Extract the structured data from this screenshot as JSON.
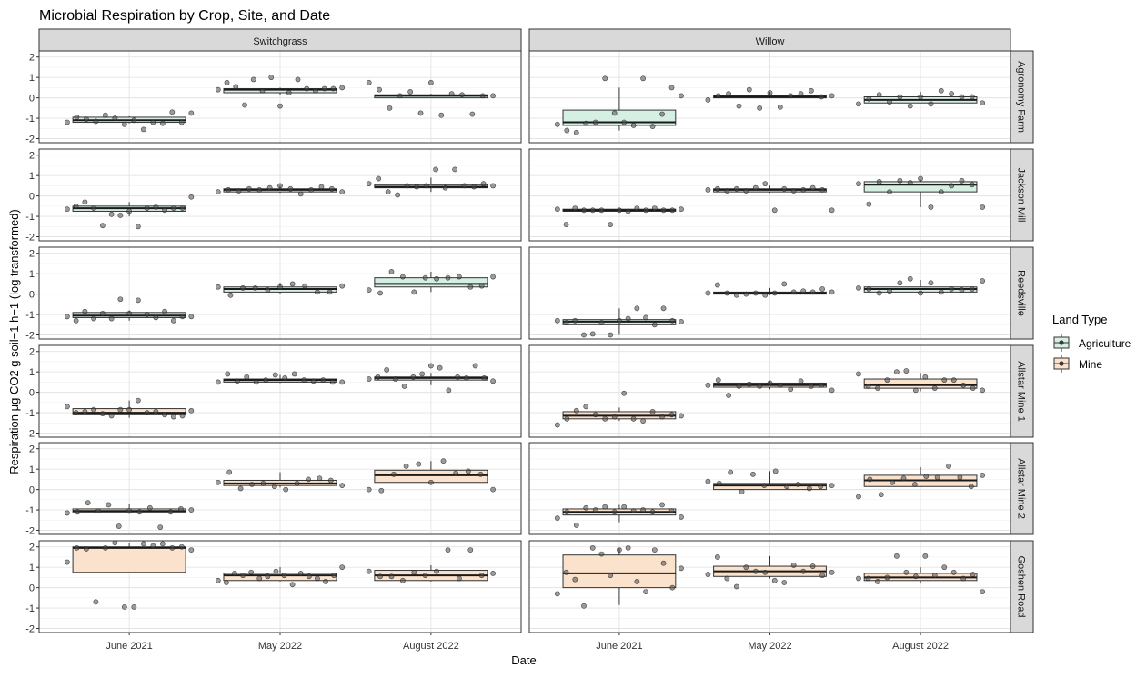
{
  "chart_data": {
    "type": "boxplot",
    "title": "Microbial Respiration by Crop, Site, and Date",
    "xlabel": "Date",
    "ylabel": "Respiration μg CO2 g soil−1 h−1 (log transformed)",
    "ylim": [
      -2.2,
      2.3
    ],
    "yticks": [
      "-2",
      "-1",
      "0",
      "1",
      "2"
    ],
    "grid": true,
    "legend": {
      "title": "Land Type",
      "position": "right",
      "entries": [
        {
          "name": "Agriculture",
          "color": "#d6efe3"
        },
        {
          "name": "Mine",
          "color": "#fbe2cc"
        }
      ]
    },
    "columns": [
      "Switchgrass",
      "Willow"
    ],
    "rows": [
      "Agronomy Farm",
      "Jackson Mill",
      "Reedsville",
      "Allstar Mine 1",
      "Allstar Mine 2",
      "Goshen Road"
    ],
    "row_land_type": [
      "Agriculture",
      "Agriculture",
      "Agriculture",
      "Mine",
      "Mine",
      "Mine"
    ],
    "categories": [
      "June 2021",
      "May 2022",
      "August 2022"
    ],
    "panels": [
      {
        "crop": "Switchgrass",
        "site": "Agronomy Farm",
        "boxes": [
          {
            "date": "June 2021",
            "min": -1.25,
            "q1": -1.2,
            "median": -1.1,
            "q3": -0.95,
            "max": -0.9,
            "points": [
              -1.2,
              -0.95,
              -1.05,
              -1.15,
              -0.85,
              -1.0,
              -1.3,
              -1.1,
              -1.55,
              -1.2,
              -1.25,
              -0.7,
              -1.2,
              -0.75
            ]
          },
          {
            "date": "May 2022",
            "min": 0.15,
            "q1": 0.25,
            "median": 0.4,
            "q3": 0.45,
            "max": 0.5,
            "points": [
              0.4,
              0.75,
              0.55,
              -0.35,
              0.9,
              0.35,
              1.0,
              -0.4,
              0.25,
              0.9,
              0.45,
              0.35,
              0.45,
              0.45,
              0.5
            ]
          },
          {
            "date": "August 2022",
            "min": 0.0,
            "q1": 0.0,
            "median": 0.1,
            "q3": 0.15,
            "max": 0.2,
            "points": [
              0.75,
              0.4,
              -0.5,
              0.1,
              0.3,
              -0.75,
              0.75,
              -0.85,
              0.2,
              0.15,
              -0.8,
              0.1,
              0.1
            ]
          }
        ]
      },
      {
        "crop": "Willow",
        "site": "Agronomy Farm",
        "boxes": [
          {
            "date": "June 2021",
            "min": -1.6,
            "q1": -1.35,
            "median": -1.2,
            "q3": -0.6,
            "max": 0.5,
            "points": [
              -1.3,
              -1.6,
              -1.7,
              -1.25,
              -1.2,
              0.95,
              -0.75,
              -1.2,
              -1.35,
              0.95,
              -1.4,
              -0.8,
              0.5,
              0.1
            ]
          },
          {
            "date": "May 2022",
            "min": 0.0,
            "q1": 0.0,
            "median": 0.05,
            "q3": 0.1,
            "max": 0.3,
            "points": [
              -0.1,
              0.1,
              0.2,
              -0.4,
              0.4,
              -0.5,
              0.25,
              -0.45,
              0.1,
              0.2,
              0.35,
              0.05,
              0.1
            ]
          },
          {
            "date": "August 2022",
            "min": -0.25,
            "q1": -0.25,
            "median": -0.1,
            "q3": 0.05,
            "max": 0.3,
            "points": [
              -0.3,
              -0.05,
              0.15,
              -0.2,
              0.05,
              -0.4,
              0.05,
              -0.3,
              0.35,
              0.2,
              0.05,
              0.05,
              -0.25
            ]
          }
        ]
      },
      {
        "crop": "Switchgrass",
        "site": "Jackson Mill",
        "boxes": [
          {
            "date": "June 2021",
            "min": -1.0,
            "q1": -0.75,
            "median": -0.6,
            "q3": -0.5,
            "max": -0.3,
            "points": [
              -0.65,
              -0.5,
              -0.3,
              -0.6,
              -1.45,
              -0.9,
              -0.95,
              -0.75,
              -1.5,
              -0.6,
              -0.55,
              -0.7,
              -0.6,
              -0.6,
              -0.05
            ]
          },
          {
            "date": "May 2022",
            "min": 0.15,
            "q1": 0.2,
            "median": 0.3,
            "q3": 0.35,
            "max": 0.5,
            "points": [
              0.2,
              0.3,
              0.25,
              0.35,
              0.3,
              0.4,
              0.5,
              0.35,
              0.1,
              0.3,
              0.45,
              0.35,
              0.2
            ]
          },
          {
            "date": "August 2022",
            "min": 0.2,
            "q1": 0.4,
            "median": 0.45,
            "q3": 0.55,
            "max": 0.9,
            "points": [
              0.6,
              0.85,
              0.2,
              0.05,
              0.5,
              0.45,
              0.5,
              1.3,
              0.4,
              1.3,
              0.5,
              0.45,
              0.6,
              0.5
            ]
          }
        ]
      },
      {
        "crop": "Willow",
        "site": "Jackson Mill",
        "boxes": [
          {
            "date": "June 2021",
            "min": -0.75,
            "q1": -0.75,
            "median": -0.7,
            "q3": -0.65,
            "max": -0.6,
            "points": [
              -0.65,
              -1.4,
              -0.6,
              -0.7,
              -0.7,
              -0.7,
              -1.4,
              -0.7,
              -0.75,
              -0.6,
              -0.7,
              -0.6,
              -0.7,
              -0.7,
              -0.65
            ]
          },
          {
            "date": "May 2022",
            "min": 0.15,
            "q1": 0.2,
            "median": 0.3,
            "q3": 0.35,
            "max": 0.5,
            "points": [
              0.3,
              0.35,
              0.25,
              0.35,
              0.25,
              0.4,
              0.6,
              -0.7,
              0.35,
              0.25,
              0.3,
              0.4,
              0.3,
              -0.7
            ]
          },
          {
            "date": "August 2022",
            "min": -0.55,
            "q1": 0.2,
            "median": 0.55,
            "q3": 0.7,
            "max": 0.8,
            "points": [
              0.6,
              -0.4,
              0.7,
              0.2,
              0.75,
              0.65,
              0.85,
              -0.55,
              0.2,
              0.5,
              0.75,
              0.55,
              -0.55
            ]
          }
        ]
      },
      {
        "crop": "Switchgrass",
        "site": "Reedsville",
        "boxes": [
          {
            "date": "June 2021",
            "min": -1.3,
            "q1": -1.15,
            "median": -1.05,
            "q3": -0.9,
            "max": -0.8,
            "points": [
              -1.1,
              -1.3,
              -0.85,
              -1.2,
              -0.95,
              -1.2,
              -0.25,
              -0.95,
              -0.3,
              -1.0,
              -1.15,
              -0.85,
              -1.3,
              -1.1,
              -1.1
            ]
          },
          {
            "date": "May 2022",
            "min": 0.0,
            "q1": 0.1,
            "median": 0.25,
            "q3": 0.35,
            "max": 0.55,
            "points": [
              0.35,
              -0.05,
              0.3,
              0.3,
              0.2,
              0.35,
              0.5,
              0.4,
              0.1,
              0.1,
              0.4
            ]
          },
          {
            "date": "August 2022",
            "min": 0.1,
            "q1": 0.35,
            "median": 0.5,
            "q3": 0.8,
            "max": 1.1,
            "points": [
              0.2,
              0.05,
              1.1,
              0.85,
              0.1,
              0.8,
              0.75,
              0.8,
              0.85,
              0.35,
              0.4,
              0.85
            ]
          }
        ]
      },
      {
        "crop": "Willow",
        "site": "Reedsville",
        "boxes": [
          {
            "date": "June 2021",
            "min": -2.0,
            "q1": -1.5,
            "median": -1.35,
            "q3": -1.25,
            "max": -0.7,
            "points": [
              -1.3,
              -1.4,
              -1.3,
              -2.0,
              -1.95,
              -1.4,
              -2.0,
              -1.3,
              -1.2,
              -0.7,
              -1.15,
              -1.5,
              -0.7,
              -1.3,
              -1.35
            ]
          },
          {
            "date": "May 2022",
            "min": -0.05,
            "q1": 0.0,
            "median": 0.05,
            "q3": 0.1,
            "max": 0.3,
            "points": [
              0.05,
              0.45,
              0.05,
              -0.05,
              0.0,
              0.05,
              -0.05,
              0.05,
              0.5,
              0.1,
              0.15,
              0.1,
              0.25,
              0.1
            ]
          },
          {
            "date": "August 2022",
            "min": 0.05,
            "q1": 0.1,
            "median": 0.25,
            "q3": 0.35,
            "max": 0.7,
            "points": [
              0.3,
              0.25,
              0.05,
              0.15,
              0.55,
              0.75,
              0.05,
              0.55,
              0.1,
              0.25,
              0.2,
              0.25,
              0.65
            ]
          }
        ]
      },
      {
        "crop": "Switchgrass",
        "site": "Allstar Mine 1",
        "boxes": [
          {
            "date": "June 2021",
            "min": -1.25,
            "q1": -1.1,
            "median": -1.0,
            "q3": -0.8,
            "max": -0.4,
            "points": [
              -0.7,
              -1.0,
              -0.95,
              -0.85,
              -1.05,
              -1.15,
              -0.85,
              -0.85,
              -0.4,
              -1.0,
              -0.95,
              -1.1,
              -1.2,
              -1.15,
              -0.9
            ]
          },
          {
            "date": "May 2022",
            "min": 0.45,
            "q1": 0.5,
            "median": 0.6,
            "q3": 0.65,
            "max": 0.85,
            "points": [
              0.5,
              0.9,
              0.55,
              0.75,
              0.5,
              0.6,
              0.85,
              0.7,
              0.9,
              0.6,
              0.55,
              0.6,
              0.5,
              0.5
            ]
          },
          {
            "date": "August 2022",
            "min": 0.35,
            "q1": 0.6,
            "median": 0.7,
            "q3": 0.75,
            "max": 0.95,
            "points": [
              0.65,
              0.75,
              1.1,
              0.65,
              0.3,
              0.75,
              0.9,
              1.3,
              1.2,
              0.1,
              0.75,
              0.7,
              1.3,
              0.7,
              0.55
            ]
          }
        ]
      },
      {
        "crop": "Willow",
        "site": "Allstar Mine 1",
        "boxes": [
          {
            "date": "June 2021",
            "min": -1.4,
            "q1": -1.3,
            "median": -1.15,
            "q3": -0.95,
            "max": -0.75,
            "points": [
              -1.6,
              -1.3,
              -0.9,
              -0.7,
              -1.1,
              -1.3,
              -1.2,
              -0.05,
              -1.3,
              -1.4,
              -0.95,
              -1.2,
              -1.1,
              -1.15
            ]
          },
          {
            "date": "May 2022",
            "min": 0.15,
            "q1": 0.25,
            "median": 0.35,
            "q3": 0.45,
            "max": 0.55,
            "points": [
              0.35,
              0.6,
              -0.15,
              0.3,
              0.4,
              0.3,
              0.45,
              0.35,
              0.15,
              0.55,
              0.3,
              0.35,
              0.1
            ]
          },
          {
            "date": "August 2022",
            "min": 0.05,
            "q1": 0.2,
            "median": 0.35,
            "q3": 0.65,
            "max": 0.95,
            "points": [
              0.9,
              0.3,
              0.2,
              0.6,
              1.0,
              1.05,
              0.1,
              0.75,
              0.2,
              0.6,
              0.6,
              0.35,
              0.2,
              0.1
            ]
          }
        ]
      },
      {
        "crop": "Switchgrass",
        "site": "Allstar Mine 2",
        "boxes": [
          {
            "date": "June 2021",
            "min": -1.2,
            "q1": -1.1,
            "median": -1.05,
            "q3": -0.95,
            "max": -0.7,
            "points": [
              -1.15,
              -1.1,
              -0.65,
              -1.05,
              -0.75,
              -1.8,
              -1.05,
              -1.1,
              -0.9,
              -1.85,
              -1.1,
              -0.95,
              -1.0
            ]
          },
          {
            "date": "May 2022",
            "min": 0.1,
            "q1": 0.2,
            "median": 0.3,
            "q3": 0.45,
            "max": 0.85,
            "points": [
              0.35,
              0.85,
              0.05,
              0.25,
              0.3,
              0.15,
              0.0,
              0.3,
              0.5,
              0.55,
              0.45,
              0.2
            ]
          },
          {
            "date": "August 2022",
            "min": 0.35,
            "q1": 0.35,
            "median": 0.7,
            "q3": 0.95,
            "max": 1.4,
            "points": [
              0.0,
              -0.05,
              0.75,
              1.15,
              1.25,
              0.35,
              1.4,
              0.8,
              0.9,
              0.75,
              0.0
            ]
          }
        ]
      },
      {
        "crop": "Willow",
        "site": "Allstar Mine 2",
        "boxes": [
          {
            "date": "June 2021",
            "min": -1.6,
            "q1": -1.25,
            "median": -1.1,
            "q3": -0.95,
            "max": -0.75,
            "points": [
              -1.4,
              -1.1,
              -1.75,
              -0.9,
              -1.0,
              -0.85,
              -1.1,
              -0.85,
              -1.05,
              -1.0,
              -1.1,
              -0.75,
              -1.05,
              -1.35
            ]
          },
          {
            "date": "May 2022",
            "min": 0.0,
            "q1": 0.0,
            "median": 0.2,
            "q3": 0.3,
            "max": 0.9,
            "points": [
              0.4,
              0.3,
              0.85,
              -0.1,
              0.75,
              0.2,
              0.9,
              0.15,
              0.25,
              0.05,
              0.15,
              0.2
            ]
          },
          {
            "date": "August 2022",
            "min": 0.15,
            "q1": 0.15,
            "median": 0.45,
            "q3": 0.7,
            "max": 1.1,
            "points": [
              -0.35,
              0.5,
              -0.25,
              0.35,
              0.55,
              0.25,
              0.65,
              0.6,
              1.15,
              0.6,
              0.15,
              0.7
            ]
          }
        ]
      },
      {
        "crop": "Switchgrass",
        "site": "Goshen Road",
        "boxes": [
          {
            "date": "June 2021",
            "min": 0.75,
            "q1": 0.75,
            "median": 1.95,
            "q3": 2.0,
            "max": 2.2,
            "points": [
              1.25,
              1.95,
              1.9,
              -0.7,
              1.95,
              2.2,
              -0.95,
              -0.95,
              2.15,
              2.05,
              2.15,
              1.95,
              2.0,
              1.85
            ]
          },
          {
            "date": "May 2022",
            "min": 0.3,
            "q1": 0.35,
            "median": 0.6,
            "q3": 0.7,
            "max": 1.0,
            "points": [
              0.35,
              0.25,
              0.7,
              0.6,
              0.75,
              0.45,
              0.55,
              0.8,
              0.6,
              0.15,
              0.7,
              0.55,
              0.45,
              0.3,
              0.6,
              1.0
            ]
          },
          {
            "date": "August 2022",
            "min": 0.3,
            "q1": 0.35,
            "median": 0.6,
            "q3": 0.85,
            "max": 1.1,
            "points": [
              0.8,
              0.55,
              0.55,
              0.35,
              0.75,
              0.6,
              0.8,
              1.85,
              0.45,
              1.85,
              0.6,
              0.7
            ]
          }
        ]
      },
      {
        "crop": "Willow",
        "site": "Goshen Road",
        "boxes": [
          {
            "date": "June 2021",
            "min": -0.85,
            "q1": 0.0,
            "median": 0.7,
            "q3": 1.6,
            "max": 1.95,
            "points": [
              -0.3,
              0.75,
              0.4,
              -0.9,
              1.95,
              1.65,
              0.6,
              1.85,
              1.95,
              0.3,
              -0.2,
              1.85,
              1.2,
              0.0,
              0.95
            ]
          },
          {
            "date": "May 2022",
            "min": 0.45,
            "q1": 0.55,
            "median": 0.8,
            "q3": 1.05,
            "max": 1.55,
            "points": [
              0.65,
              1.5,
              0.45,
              0.05,
              1.0,
              0.8,
              0.75,
              0.35,
              0.25,
              1.1,
              0.8,
              1.05,
              0.6,
              0.75
            ]
          },
          {
            "date": "August 2022",
            "min": 0.2,
            "q1": 0.35,
            "median": 0.5,
            "q3": 0.7,
            "max": 1.0,
            "points": [
              0.45,
              0.45,
              0.3,
              0.5,
              1.55,
              0.75,
              0.55,
              1.55,
              0.6,
              1.0,
              0.75,
              0.45,
              0.65,
              -0.2
            ]
          }
        ]
      }
    ]
  }
}
